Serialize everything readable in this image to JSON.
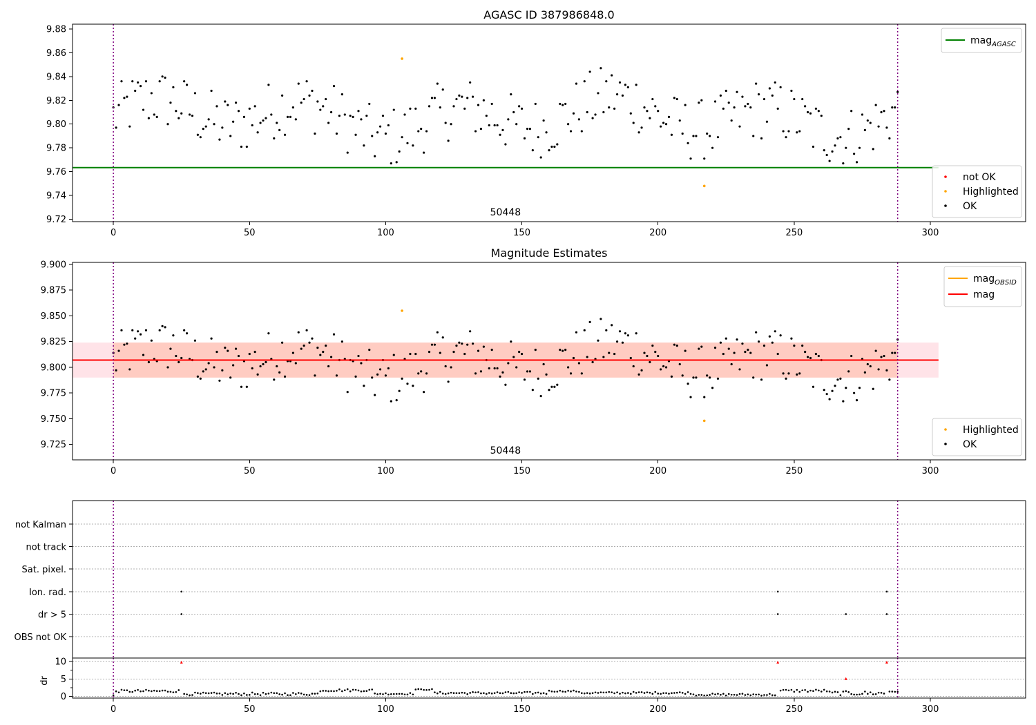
{
  "chart_data": [
    {
      "id": "top",
      "type": "scatter",
      "title": "AGASC ID 387986848.0",
      "xlim": [
        -15,
        335
      ],
      "ylim": [
        9.718,
        9.884
      ],
      "xticks": [
        0,
        50,
        100,
        150,
        200,
        250,
        300
      ],
      "yticks": [
        9.72,
        9.74,
        9.76,
        9.78,
        9.8,
        9.82,
        9.84,
        9.86,
        9.88
      ],
      "ytick_labels": [
        "9.72",
        "9.74",
        "9.76",
        "9.78",
        "9.80",
        "9.82",
        "9.84",
        "9.86",
        "9.88"
      ],
      "obs_boundaries": [
        0,
        288
      ],
      "obs_label": {
        "text": "50448",
        "x": 144
      },
      "lines": [
        {
          "name": "mag",
          "name_sub": "AGASC",
          "y": 9.7634,
          "x": [
            -15,
            303
          ],
          "color": "#008000"
        }
      ],
      "highlighted": {
        "x": [
          106,
          217
        ],
        "y": [
          9.855,
          9.748
        ]
      },
      "legend_lines": {
        "entries": [
          {
            "name": "mag",
            "sub": "AGASC",
            "color": "#008000"
          }
        ],
        "location": "upper right"
      },
      "legend_points": {
        "entries": [
          {
            "name": "not OK",
            "color": "#ff0000"
          },
          {
            "name": "Highlighted",
            "color": "#ffa500"
          },
          {
            "name": "OK",
            "color": "#000000"
          }
        ],
        "location": "lower right"
      }
    },
    {
      "id": "mid",
      "type": "scatter",
      "title": "Magnitude Estimates",
      "xlim": [
        -15,
        335
      ],
      "ylim": [
        9.71,
        9.902
      ],
      "xticks": [
        0,
        50,
        100,
        150,
        200,
        250,
        300
      ],
      "yticks": [
        9.725,
        9.75,
        9.775,
        9.8,
        9.825,
        9.85,
        9.875,
        9.9
      ],
      "ytick_labels": [
        "9.725",
        "9.750",
        "9.775",
        "9.800",
        "9.825",
        "9.850",
        "9.875",
        "9.900"
      ],
      "obs_boundaries": [
        0,
        288
      ],
      "obs_label": {
        "text": "50448",
        "x": 144
      },
      "lines": [
        {
          "name": "mag",
          "sub": "OBSID",
          "y": 9.807,
          "x": [
            0,
            288
          ],
          "color": "#ffa500"
        },
        {
          "name": "mag",
          "y": 9.807,
          "x": [
            -15,
            303
          ],
          "color": "#ff0000"
        }
      ],
      "bands": [
        {
          "y0": 9.79,
          "y1": 9.824,
          "x": [
            -15,
            303
          ],
          "color": "#ffc0cb",
          "opacity": 0.45
        },
        {
          "y0": 9.79,
          "y1": 9.824,
          "x": [
            0,
            288
          ],
          "color": "#ffa07a",
          "opacity": 0.35
        }
      ],
      "highlighted": {
        "x": [
          106,
          217
        ],
        "y": [
          9.855,
          9.748
        ]
      },
      "legend_lines": {
        "entries": [
          {
            "name": "mag",
            "sub": "OBSID",
            "color": "#ffa500"
          },
          {
            "name": "mag",
            "color": "#ff0000"
          }
        ],
        "location": "upper right"
      },
      "legend_points": {
        "entries": [
          {
            "name": "Highlighted",
            "color": "#ffa500"
          },
          {
            "name": "OK",
            "color": "#000000"
          }
        ],
        "location": "lower right"
      }
    },
    {
      "id": "flags",
      "type": "scatter",
      "xlim": [
        -15,
        335
      ],
      "categories": [
        "not Kalman",
        "not track",
        "Sat. pixel.",
        "Ion. rad.",
        "dr > 5",
        "OBS not OK"
      ],
      "obs_boundaries": [
        0,
        288
      ],
      "flags": [
        {
          "category": "Ion. rad.",
          "x": [
            25,
            244,
            284
          ]
        },
        {
          "category": "dr > 5",
          "x": [
            25,
            244,
            269,
            284
          ]
        }
      ]
    },
    {
      "id": "dr",
      "type": "scatter",
      "ylabel": "dr",
      "xlim": [
        -15,
        335
      ],
      "ylim": [
        -0.5,
        11
      ],
      "xticks": [
        0,
        50,
        100,
        150,
        200,
        250,
        300
      ],
      "yticks": [
        0,
        5,
        10
      ],
      "ytick_labels": [
        "0",
        "5",
        "10"
      ],
      "obs_boundaries": [
        0,
        288
      ],
      "red_points": {
        "x": [
          25,
          244,
          269,
          284
        ],
        "y": [
          9.8,
          9.8,
          5.1,
          9.8
        ]
      },
      "segments": [
        {
          "x0": 1,
          "x1": 24,
          "lo": 1.1,
          "hi": 1.9
        },
        {
          "x0": 26,
          "x1": 75,
          "lo": 0.3,
          "hi": 1.1
        },
        {
          "x0": 76,
          "x1": 95,
          "lo": 1.4,
          "hi": 2.1
        },
        {
          "x0": 96,
          "x1": 110,
          "lo": 0.5,
          "hi": 1.0
        },
        {
          "x0": 111,
          "x1": 117,
          "lo": 1.8,
          "hi": 2.1
        },
        {
          "x0": 118,
          "x1": 159,
          "lo": 0.6,
          "hi": 1.3
        },
        {
          "x0": 160,
          "x1": 170,
          "lo": 1.3,
          "hi": 1.7
        },
        {
          "x0": 171,
          "x1": 212,
          "lo": 0.7,
          "hi": 1.3
        },
        {
          "x0": 213,
          "x1": 243,
          "lo": 0.2,
          "hi": 0.8
        },
        {
          "x0": 245,
          "x1": 262,
          "lo": 1.2,
          "hi": 2.0
        },
        {
          "x0": 263,
          "x1": 283,
          "lo": 0.3,
          "hi": 1.5
        },
        {
          "x0": 285,
          "x1": 288,
          "lo": 1.2,
          "hi": 1.6
        }
      ]
    }
  ]
}
